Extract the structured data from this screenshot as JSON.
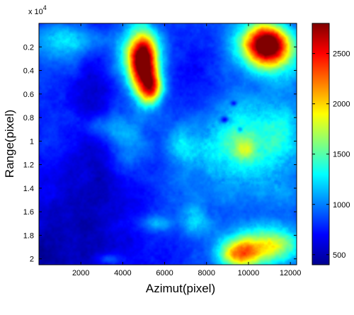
{
  "chart_data": {
    "type": "heatmap",
    "title": "",
    "xlabel": "Azimut(pixel)",
    "ylabel": "Range(pixel)",
    "xlim": [
      0,
      12300
    ],
    "ylim": [
      0,
      20500
    ],
    "y_reversed": true,
    "y_multiplier_label": "x 10",
    "y_multiplier_exponent": "4",
    "x_ticks": [
      2000,
      4000,
      6000,
      8000,
      10000,
      12000
    ],
    "x_tick_labels": [
      "2000",
      "4000",
      "6000",
      "8000",
      "10000",
      "12000"
    ],
    "y_ticks": [
      2000,
      4000,
      6000,
      8000,
      10000,
      12000,
      14000,
      16000,
      18000,
      20000
    ],
    "y_tick_labels": [
      "0.2",
      "0.4",
      "0.6",
      "0.8",
      "1",
      "1.2",
      "1.4",
      "1.6",
      "1.8",
      "2"
    ],
    "colormap": "jet",
    "colorbar": {
      "range": [
        400,
        2800
      ],
      "ticks": [
        500,
        1000,
        1500,
        2000,
        2500
      ],
      "tick_labels": [
        "500",
        "1000",
        "1500",
        "2000",
        "2500"
      ]
    },
    "background_level": 850,
    "features": [
      {
        "kind": "peak",
        "x": 5000,
        "y": 3600,
        "sx": 450,
        "sy": 1900,
        "amp": 1800
      },
      {
        "kind": "peak",
        "x": 5400,
        "y": 5500,
        "sx": 350,
        "sy": 900,
        "amp": 1100
      },
      {
        "kind": "peak",
        "x": 4700,
        "y": 2600,
        "sx": 700,
        "sy": 1400,
        "amp": 700
      },
      {
        "kind": "peak",
        "x": 10900,
        "y": 1800,
        "sx": 700,
        "sy": 1200,
        "amp": 1800
      },
      {
        "kind": "peak",
        "x": 10200,
        "y": 1800,
        "sx": 900,
        "sy": 1300,
        "amp": 500
      },
      {
        "kind": "peak",
        "x": 11700,
        "y": 2800,
        "sx": 900,
        "sy": 1600,
        "amp": 400
      },
      {
        "kind": "peak",
        "x": 1500,
        "y": 1500,
        "sx": 1200,
        "sy": 1200,
        "amp": 400
      },
      {
        "kind": "peak",
        "x": 9600,
        "y": 10300,
        "sx": 1600,
        "sy": 2600,
        "amp": 600
      },
      {
        "kind": "peak",
        "x": 9900,
        "y": 10700,
        "sx": 350,
        "sy": 700,
        "amp": 400
      },
      {
        "kind": "peak",
        "x": 9600,
        "y": 19600,
        "sx": 700,
        "sy": 900,
        "amp": 1200
      },
      {
        "kind": "peak",
        "x": 11200,
        "y": 19000,
        "sx": 900,
        "sy": 1000,
        "amp": 700
      },
      {
        "kind": "peak",
        "x": 10500,
        "y": 18500,
        "sx": 1300,
        "sy": 1300,
        "amp": 300
      },
      {
        "kind": "peak",
        "x": 3000,
        "y": 8800,
        "sx": 700,
        "sy": 800,
        "amp": 350
      },
      {
        "kind": "peak",
        "x": 4300,
        "y": 10500,
        "sx": 600,
        "sy": 1500,
        "amp": 300
      },
      {
        "kind": "peak",
        "x": 6800,
        "y": 10600,
        "sx": 500,
        "sy": 1200,
        "amp": 350
      },
      {
        "kind": "peak",
        "x": 5500,
        "y": 17000,
        "sx": 500,
        "sy": 500,
        "amp": 350
      },
      {
        "kind": "peak",
        "x": 7400,
        "y": 17000,
        "sx": 500,
        "sy": 900,
        "amp": 300
      },
      {
        "kind": "peak",
        "x": 3300,
        "y": 20000,
        "sx": 400,
        "sy": 300,
        "amp": 250
      },
      {
        "kind": "peak",
        "x": 11700,
        "y": 9000,
        "sx": 700,
        "sy": 1800,
        "amp": 300
      },
      {
        "kind": "peak",
        "x": 11500,
        "y": 14500,
        "sx": 700,
        "sy": 1200,
        "amp": 150
      },
      {
        "kind": "peak",
        "x": 7000,
        "y": 15500,
        "sx": 1200,
        "sy": 1800,
        "amp": 150
      },
      {
        "kind": "valley",
        "x": 1800,
        "y": 16500,
        "sx": 3000,
        "sy": 4500,
        "amp": -260
      },
      {
        "kind": "valley",
        "x": 300,
        "y": 20000,
        "sx": 1200,
        "sy": 1500,
        "amp": -200
      },
      {
        "kind": "valley",
        "x": 2600,
        "y": 6000,
        "sx": 700,
        "sy": 6000,
        "amp": -200
      },
      {
        "kind": "valley",
        "x": 7600,
        "y": 5500,
        "sx": 900,
        "sy": 3000,
        "amp": -120
      },
      {
        "kind": "valley",
        "x": 8850,
        "y": 8200,
        "sx": 120,
        "sy": 200,
        "amp": -450
      },
      {
        "kind": "valley",
        "x": 9300,
        "y": 6800,
        "sx": 100,
        "sy": 150,
        "amp": -350
      },
      {
        "kind": "valley",
        "x": 9600,
        "y": 9000,
        "sx": 100,
        "sy": 200,
        "amp": -300
      }
    ]
  }
}
